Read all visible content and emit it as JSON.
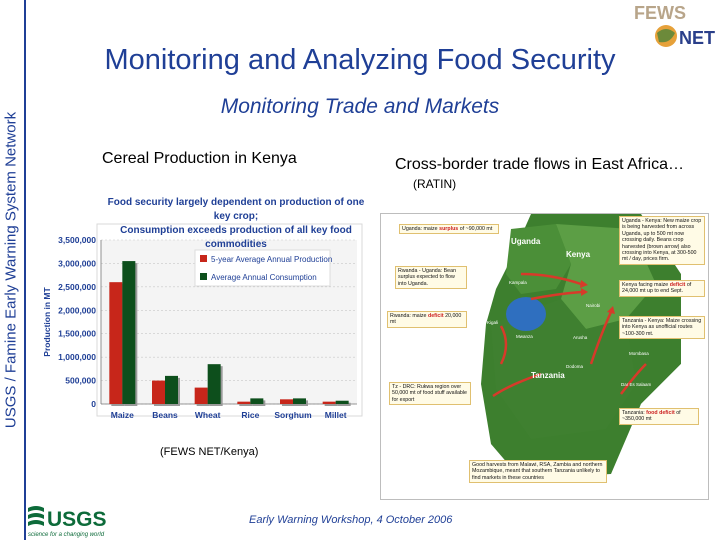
{
  "sidebar": {
    "vertical_text": "USGS / Famine Early Warning System Network"
  },
  "logos": {
    "fews": "FEWS",
    "net": "NET",
    "usgs": "USGS",
    "usgs_tagline": "science for a changing world"
  },
  "slide": {
    "title": "Monitoring and Analyzing Food Security",
    "subtitle": "Monitoring Trade and Markets",
    "chart_title": "Cereal Production in Kenya",
    "map_title": "Cross-border trade flows in East Africa…",
    "map_title_suffix": "(RATIN)",
    "source": "(FEWS NET/Kenya)",
    "footer": "Early Warning Workshop, 4 October 2006"
  },
  "chart_header": {
    "line1": "Food security largely dependent on production of one key crop;",
    "line2": "Consumption exceeds production of all key food commodities"
  },
  "chart_data": {
    "type": "bar",
    "categories": [
      "Maize",
      "Beans",
      "Wheat",
      "Rice",
      "Sorghum",
      "Millet"
    ],
    "series": [
      {
        "name": "5-year Average Annual Production",
        "values": [
          2600000,
          500000,
          350000,
          50000,
          100000,
          50000
        ],
        "color": "#c7261a"
      },
      {
        "name": "Average Annual Consumption",
        "values": [
          3050000,
          600000,
          850000,
          120000,
          120000,
          70000
        ],
        "color": "#0d4f1c"
      }
    ],
    "ylabel": "Production in MT",
    "ylim": [
      0,
      3500000
    ],
    "yticks": [
      "0",
      "500,000",
      "1,000,000",
      "1,500,000",
      "2,000,000",
      "2,500,000",
      "3,000,000",
      "3,500,000"
    ],
    "grid": true,
    "legend": "top-right"
  },
  "map": {
    "countries": [
      "Uganda",
      "Kenya",
      "Tanzania"
    ],
    "cities": [
      "Kampala",
      "Nairobi",
      "Mombasa",
      "Dar Es Salaam",
      "Kigali",
      "Mwanza",
      "Arusha",
      "Dodoma"
    ],
    "annotations": {
      "uganda": {
        "pre": "Uganda: maize",
        "red": "surplus",
        "post": "of ~90,000 mt"
      },
      "rwanda_uganda": "Rwanda - Uganda: Bean surplus expected to flow into Uganda.",
      "rwanda": {
        "pre": "Rwanda: maize",
        "red": "deficit",
        "post": "20,000 mt"
      },
      "tz_drc": "Tz - DRC: Rukwa region over 50,000 mt of food stuff available for export",
      "uganda_kenya": "Uganda - Kenya: New maize crop is being harvested from across Uganda, up to 500 mt now crossing daily. Beans crop harvested (brown arrow) also crossing into Kenya, at 300-500 mt / day, prices firm.",
      "kenya": {
        "pre": "Kenya facing maize",
        "red": "deficit",
        "post": "of 24,000 mt up to end Sept."
      },
      "tanzania_kenya": "Tanzania - Kenya: Maize crossing into Kenya as unofficial routes ~100-300 mt.",
      "tanzania": {
        "pre": "Tanzania:",
        "red": "food deficit",
        "post": "of ~350,000 mt"
      },
      "malawi": "Good harvests from Malawi, RSA, Zambia and northern Mozambique, meant that southern Tanzania unlikely to find markets in these countries"
    }
  },
  "colors": {
    "title_blue": "#1f3f96",
    "production_red": "#c7261a",
    "consumption_green": "#0d4f1c",
    "map_green": "#3d7f2e",
    "deficit_red": "#cc2020"
  },
  "icons": [
    "fews-net-logo",
    "usgs-logo",
    "trade-flow-arrow"
  ]
}
